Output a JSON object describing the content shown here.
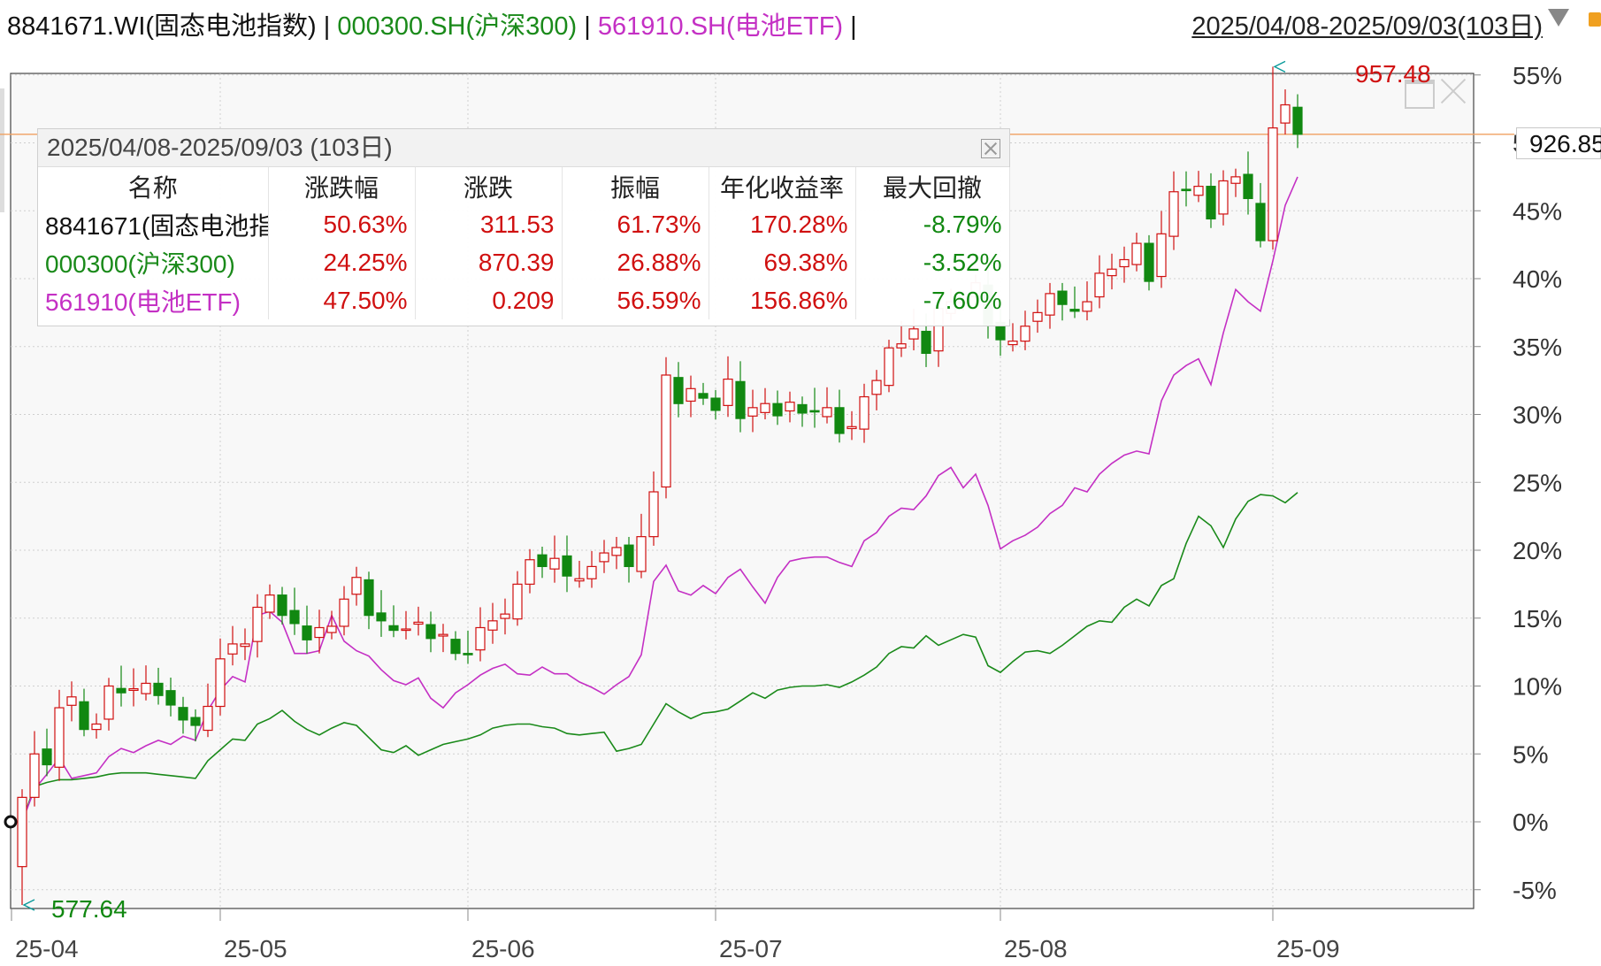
{
  "header": {
    "main": "8841671.WI(固态电池指数)",
    "separator": "|",
    "series1": "000300.SH(沪深300)",
    "series2": "561910.SH(电池ETF)",
    "range": "2025/04/08-2025/09/03(103日)"
  },
  "legend": {
    "title": "2025/04/08-2025/09/03 (103日)",
    "columns": [
      "名称",
      "涨跌幅",
      "涨跌",
      "振幅",
      "年化收益率",
      "最大回撤"
    ],
    "rows": [
      [
        "8841671(固态电池指",
        "50.63%",
        "311.53",
        "61.73%",
        "170.28%",
        "-8.79%"
      ],
      [
        "000300(沪深300)",
        "24.25%",
        "870.39",
        "26.88%",
        "69.38%",
        "-3.52%"
      ],
      [
        "561910(电池ETF)",
        "47.50%",
        "0.209",
        "56.59%",
        "156.86%",
        "-7.60%"
      ]
    ]
  },
  "labels": {
    "high": "957.48",
    "low": "577.64",
    "current": "926.85"
  },
  "colors": {
    "up": "#d01010",
    "down": "#118811",
    "csi300": "#1a8a1a",
    "etf": "#c430c4",
    "current_line": "#f0a060"
  },
  "chart_data": {
    "type": "line",
    "title": "",
    "xlabel": "",
    "ylabel": "",
    "ylim": [
      -6,
      55
    ],
    "y_ticks": [
      "55%",
      "50%",
      "45%",
      "40%",
      "35%",
      "30%",
      "25%",
      "20%",
      "15%",
      "10%",
      "5%",
      "0%",
      "-5%"
    ],
    "y_tick_values": [
      55,
      50,
      45,
      40,
      35,
      30,
      25,
      20,
      15,
      10,
      5,
      0,
      -5
    ],
    "x_ticks": [
      "25-04",
      "25-05",
      "25-06",
      "25-07",
      "25-08",
      "25-09"
    ],
    "x_tick_index": [
      0,
      16,
      36,
      56,
      79,
      101
    ],
    "grid": true,
    "base_value": 615.32,
    "high": 957.48,
    "low": 577.64,
    "current": 926.85,
    "series": [
      {
        "name": "8841671.WI(固态电池指数)",
        "kind": "candlestick",
        "values_pct_close": [
          1.8,
          5.0,
          4.2,
          8.4,
          9.2,
          6.8,
          7.2,
          10.0,
          9.5,
          9.8,
          10.2,
          9.3,
          8.6,
          7.5,
          7.1,
          8.5,
          12.0,
          13.1,
          13.1,
          15.8,
          16.7,
          15.2,
          14.6,
          13.4,
          14.3,
          14.4,
          16.4,
          18.0,
          15.2,
          14.8,
          14.1,
          14.2,
          14.7,
          13.5,
          13.8,
          12.4,
          12.3,
          14.3,
          14.8,
          15.3,
          17.5,
          19.3,
          18.8,
          19.4,
          18.1,
          17.9,
          18.8,
          19.8,
          20.2,
          18.8,
          21.0,
          24.3,
          32.9,
          30.8,
          31.9,
          31.2,
          30.3,
          32.6,
          29.7,
          30.5,
          30.8,
          29.9,
          30.9,
          30.1,
          30.2,
          30.5,
          28.6,
          29.1,
          31.3,
          32.5,
          34.9,
          35.2,
          36.3,
          34.5,
          37.8,
          38.3,
          38.3,
          39.7,
          36.6,
          35.5,
          35.4,
          36.5,
          37.5,
          38.9,
          38.1,
          37.6,
          38.3,
          40.4,
          40.7,
          41.4,
          42.6,
          39.8,
          43.3,
          46.4,
          46.5,
          46.8,
          44.4,
          47.2,
          47.5,
          45.9,
          42.8,
          51.1,
          52.8,
          50.63
        ]
      },
      {
        "name": "000300.SH(沪深300)",
        "kind": "line",
        "values_pct": [
          0.0,
          2.6,
          2.9,
          3.1,
          3.1,
          3.2,
          3.3,
          3.5,
          3.6,
          3.6,
          3.6,
          3.5,
          3.4,
          3.3,
          3.2,
          4.5,
          5.3,
          6.1,
          6.0,
          7.2,
          7.6,
          8.2,
          7.4,
          6.8,
          6.4,
          6.9,
          7.3,
          7.1,
          6.2,
          5.3,
          5.1,
          5.6,
          4.9,
          5.3,
          5.7,
          5.9,
          6.1,
          6.4,
          6.9,
          7.1,
          7.2,
          7.2,
          7.0,
          6.9,
          6.5,
          6.4,
          6.5,
          6.6,
          5.2,
          5.4,
          5.7,
          7.2,
          8.7,
          8.1,
          7.6,
          8.0,
          8.1,
          8.3,
          8.9,
          9.5,
          9.1,
          9.7,
          9.9,
          10.0,
          10.0,
          10.1,
          9.9,
          10.3,
          10.8,
          11.4,
          12.4,
          12.9,
          12.8,
          13.7,
          13.0,
          13.4,
          13.8,
          13.6,
          11.5,
          11.0,
          11.8,
          12.5,
          12.6,
          12.4,
          13.0,
          13.7,
          14.4,
          14.8,
          14.7,
          15.8,
          16.4,
          15.9,
          17.4,
          17.9,
          20.5,
          22.5,
          21.8,
          20.2,
          22.3,
          23.6,
          24.1,
          24.0,
          23.5,
          24.25
        ]
      },
      {
        "name": "561910.SH(电池ETF)",
        "kind": "line",
        "values_pct": [
          0.0,
          2.4,
          3.5,
          4.7,
          3.2,
          3.4,
          3.6,
          4.8,
          5.4,
          5.1,
          5.6,
          6.0,
          5.7,
          6.3,
          6.0,
          8.2,
          9.7,
          10.7,
          10.3,
          15.2,
          15.5,
          14.7,
          12.4,
          12.4,
          12.6,
          15.2,
          13.3,
          12.6,
          12.2,
          11.2,
          10.4,
          10.1,
          10.6,
          9.1,
          8.4,
          9.5,
          10.1,
          10.8,
          11.3,
          11.6,
          10.9,
          10.8,
          11.4,
          10.9,
          10.9,
          10.3,
          9.9,
          9.4,
          10.1,
          10.7,
          12.3,
          17.7,
          18.9,
          17.0,
          16.7,
          17.4,
          16.8,
          18.0,
          18.6,
          17.3,
          16.1,
          18.0,
          19.2,
          19.4,
          19.5,
          19.5,
          19.1,
          18.8,
          20.7,
          21.3,
          22.5,
          23.1,
          23.0,
          24.0,
          25.5,
          26.1,
          24.6,
          25.6,
          23.3,
          20.1,
          20.7,
          21.1,
          21.7,
          22.7,
          23.3,
          24.6,
          24.3,
          25.6,
          26.4,
          27.0,
          27.3,
          27.1,
          31.0,
          32.9,
          33.6,
          34.1,
          32.2,
          36.0,
          39.2,
          38.3,
          37.6,
          41.3,
          45.4,
          47.5
        ]
      }
    ]
  }
}
